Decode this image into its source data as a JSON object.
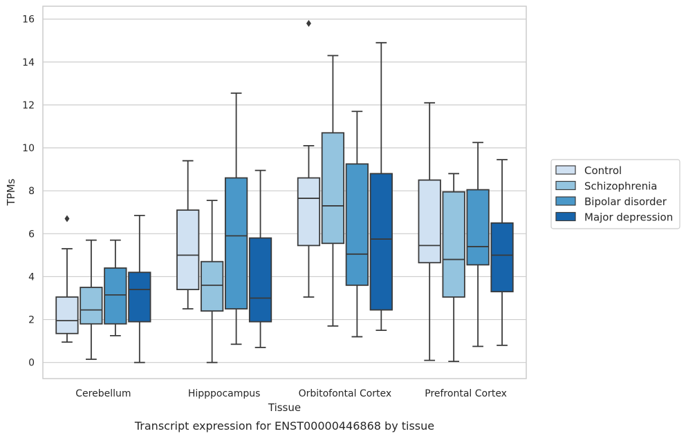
{
  "chart_data": {
    "type": "box",
    "caption": "Transcript expression for ENST00000446868 by tissue",
    "xlabel": "Tissue",
    "ylabel": "TPMs",
    "ylim": [
      -0.75,
      16.6
    ],
    "yticks": [
      0,
      2,
      4,
      6,
      8,
      10,
      12,
      14,
      16
    ],
    "grid": "horizontal",
    "legend_position": "right",
    "categories": [
      "Cerebellum",
      "Hipppocampus",
      "Orbitofontal Cortex",
      "Prefrontal Cortex"
    ],
    "series": [
      {
        "name": "Control",
        "color": "#d0e1f2",
        "boxes": [
          {
            "whislo": 0.95,
            "q1": 1.35,
            "med": 1.95,
            "q3": 3.05,
            "whishi": 5.3,
            "fliers": [
              6.7
            ]
          },
          {
            "whislo": 2.5,
            "q1": 3.4,
            "med": 5.0,
            "q3": 7.1,
            "whishi": 9.4,
            "fliers": []
          },
          {
            "whislo": 3.05,
            "q1": 5.45,
            "med": 7.65,
            "q3": 8.6,
            "whishi": 10.1,
            "fliers": [
              15.8
            ]
          },
          {
            "whislo": 0.1,
            "q1": 4.65,
            "med": 5.45,
            "q3": 8.5,
            "whishi": 12.1,
            "fliers": []
          }
        ]
      },
      {
        "name": "Schizophrenia",
        "color": "#94c4df",
        "boxes": [
          {
            "whislo": 0.15,
            "q1": 1.8,
            "med": 2.45,
            "q3": 3.5,
            "whishi": 5.7,
            "fliers": []
          },
          {
            "whislo": 0.0,
            "q1": 2.4,
            "med": 3.6,
            "q3": 4.7,
            "whishi": 7.55,
            "fliers": []
          },
          {
            "whislo": 1.7,
            "q1": 5.55,
            "med": 7.3,
            "q3": 10.7,
            "whishi": 14.3,
            "fliers": []
          },
          {
            "whislo": 0.05,
            "q1": 3.05,
            "med": 4.8,
            "q3": 7.95,
            "whishi": 8.8,
            "fliers": []
          }
        ]
      },
      {
        "name": "Bipolar disorder",
        "color": "#4a98c9",
        "boxes": [
          {
            "whislo": 1.25,
            "q1": 1.8,
            "med": 3.15,
            "q3": 4.4,
            "whishi": 5.7,
            "fliers": []
          },
          {
            "whislo": 0.85,
            "q1": 2.5,
            "med": 5.9,
            "q3": 8.6,
            "whishi": 12.55,
            "fliers": []
          },
          {
            "whislo": 1.2,
            "q1": 3.6,
            "med": 5.05,
            "q3": 9.25,
            "whishi": 11.7,
            "fliers": []
          },
          {
            "whislo": 0.75,
            "q1": 4.55,
            "med": 5.4,
            "q3": 8.05,
            "whishi": 10.25,
            "fliers": []
          }
        ]
      },
      {
        "name": "Major depression",
        "color": "#1764ab",
        "boxes": [
          {
            "whislo": 0.0,
            "q1": 1.9,
            "med": 3.4,
            "q3": 4.2,
            "whishi": 6.85,
            "fliers": []
          },
          {
            "whislo": 0.7,
            "q1": 1.9,
            "med": 3.0,
            "q3": 5.8,
            "whishi": 8.95,
            "fliers": []
          },
          {
            "whislo": 1.5,
            "q1": 2.45,
            "med": 5.75,
            "q3": 8.8,
            "whishi": 14.9,
            "fliers": []
          },
          {
            "whislo": 0.8,
            "q1": 3.3,
            "med": 5.0,
            "q3": 6.5,
            "whishi": 9.45,
            "fliers": []
          }
        ]
      }
    ]
  }
}
